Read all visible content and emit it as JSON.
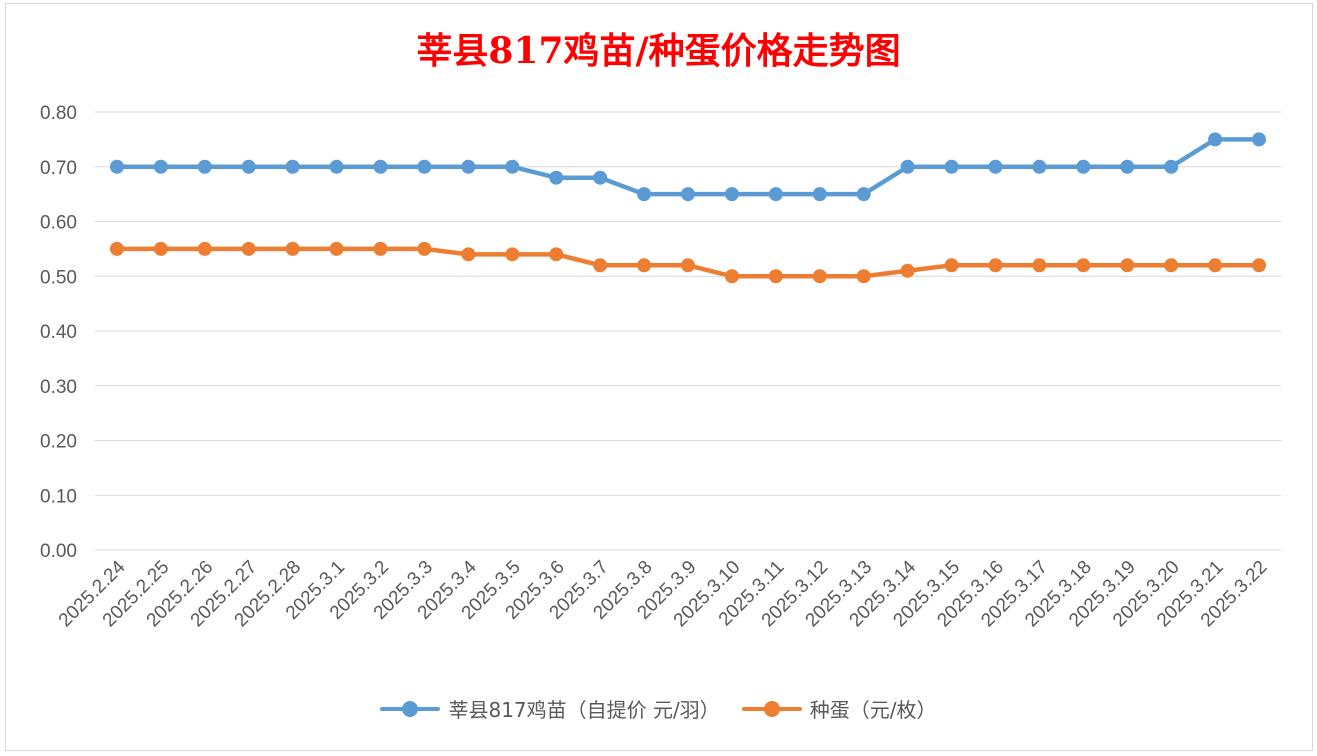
{
  "chart_data": {
    "type": "line",
    "title": "莘县817鸡苗/种蛋价格走势图",
    "categories": [
      "2025.2.24",
      "2025.2.25",
      "2025.2.26",
      "2025.2.27",
      "2025.2.28",
      "2025.3.1",
      "2025.3.2",
      "2025.3.3",
      "2025.3.4",
      "2025.3.5",
      "2025.3.6",
      "2025.3.7",
      "2025.3.8",
      "2025.3.9",
      "2025.3.10",
      "2025.3.11",
      "2025.3.12",
      "2025.3.13",
      "2025.3.14",
      "2025.3.15",
      "2025.3.16",
      "2025.3.17",
      "2025.3.18",
      "2025.3.19",
      "2025.3.20",
      "2025.3.21",
      "2025.3.22"
    ],
    "series": [
      {
        "name": "莘县817鸡苗（自提价 元/羽）",
        "color": "#5b9bd5",
        "values": [
          0.7,
          0.7,
          0.7,
          0.7,
          0.7,
          0.7,
          0.7,
          0.7,
          0.7,
          0.7,
          0.68,
          0.68,
          0.65,
          0.65,
          0.65,
          0.65,
          0.65,
          0.65,
          0.7,
          0.7,
          0.7,
          0.7,
          0.7,
          0.7,
          0.7,
          0.75,
          0.75
        ]
      },
      {
        "name": "种蛋（元/枚）",
        "color": "#ed7d31",
        "values": [
          0.55,
          0.55,
          0.55,
          0.55,
          0.55,
          0.55,
          0.55,
          0.55,
          0.54,
          0.54,
          0.54,
          0.52,
          0.52,
          0.52,
          0.5,
          0.5,
          0.5,
          0.5,
          0.51,
          0.52,
          0.52,
          0.52,
          0.52,
          0.52,
          0.52,
          0.52,
          0.52
        ]
      }
    ],
    "yticks": [
      "0.00",
      "0.10",
      "0.20",
      "0.30",
      "0.40",
      "0.50",
      "0.60",
      "0.70",
      "0.80"
    ],
    "ylim": [
      0,
      0.8
    ],
    "grid": true,
    "legend": "bottom"
  },
  "colors": {
    "title": "#ff0000",
    "grid": "#d9d9d9",
    "axis_text": "#595959"
  }
}
